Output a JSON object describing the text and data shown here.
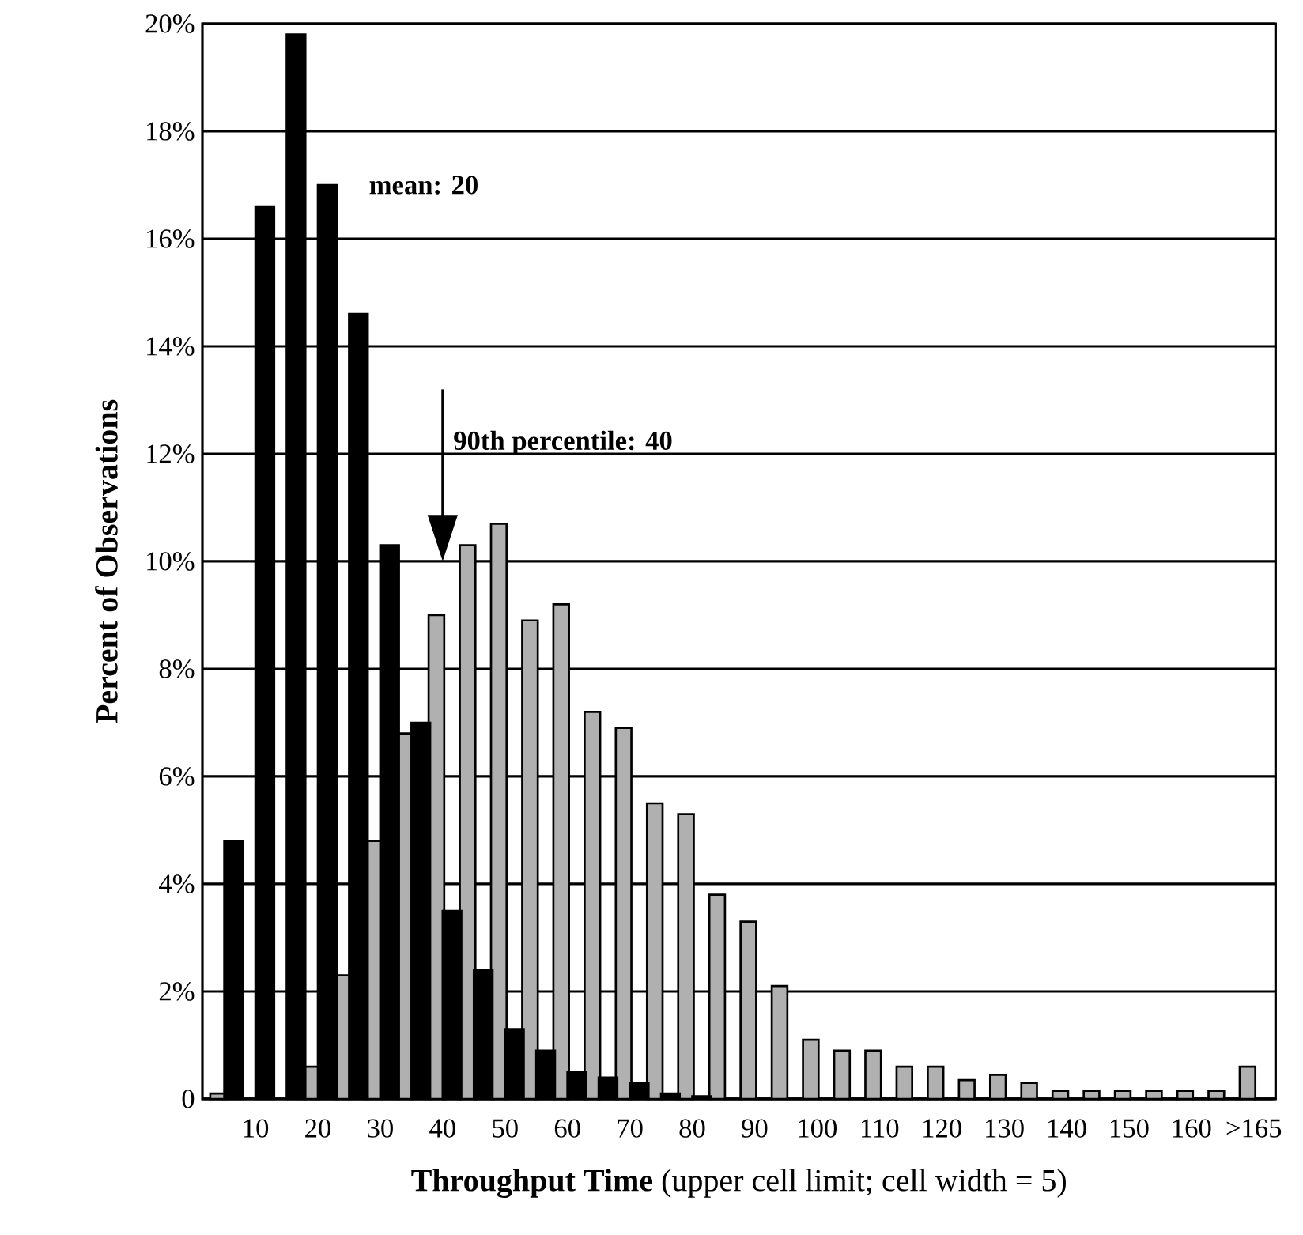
{
  "chart_data": {
    "type": "bar",
    "xlabel": "**Throughput Time** (upper cell limit; cell width = 5)",
    "ylabel": "Percent of Observations",
    "categories": [
      null,
      "10",
      null,
      "20",
      null,
      "30",
      null,
      "40",
      null,
      "50",
      null,
      "60",
      null,
      "70",
      null,
      "80",
      null,
      "90",
      null,
      "100",
      null,
      "110",
      null,
      "120",
      null,
      "130",
      null,
      "140",
      null,
      "150",
      null,
      "160",
      null,
      ">165"
    ],
    "series": [
      {
        "color": "#b0b0b0",
        "values": [
          0.1,
          null,
          null,
          0.6,
          2.3,
          4.8,
          6.8,
          9.0,
          10.3,
          10.7,
          8.9,
          9.2,
          7.2,
          6.9,
          5.5,
          5.3,
          3.8,
          3.3,
          2.1,
          1.1,
          0.9,
          0.9,
          0.6,
          0.6,
          0.35,
          0.45,
          0.3,
          0.15,
          0.15,
          0.15,
          0.15,
          0.15,
          0.15,
          0.6
        ]
      },
      {
        "color": "#000000",
        "values": [
          4.8,
          16.6,
          19.8,
          17.0,
          14.6,
          10.3,
          7.0,
          3.5,
          2.4,
          1.3,
          0.9,
          0.5,
          0.4,
          0.3,
          0.1,
          0.05,
          0,
          0,
          0,
          0,
          0,
          0,
          0,
          0,
          0,
          0,
          0,
          0,
          0,
          0,
          0,
          0,
          0,
          0
        ]
      }
    ],
    "ylim": [
      0,
      20
    ],
    "yticks": [
      {
        "value": 0,
        "label": "0"
      },
      {
        "value": 2,
        "label": "2%"
      },
      {
        "value": 4,
        "label": "4%"
      },
      {
        "value": 6,
        "label": "6%"
      },
      {
        "value": 8,
        "label": "8%"
      },
      {
        "value": 10,
        "label": "10%"
      },
      {
        "value": 12,
        "label": "12%"
      },
      {
        "value": 14,
        "label": "14%"
      },
      {
        "value": 16,
        "label": "16%"
      },
      {
        "value": 18,
        "label": "18%"
      },
      {
        "value": 20,
        "label": "20%"
      }
    ],
    "grid": "y",
    "annotations": [
      {
        "text": "mean: 20",
        "x": "20",
        "y": 17
      },
      "90th percentile: 40"
    ]
  }
}
